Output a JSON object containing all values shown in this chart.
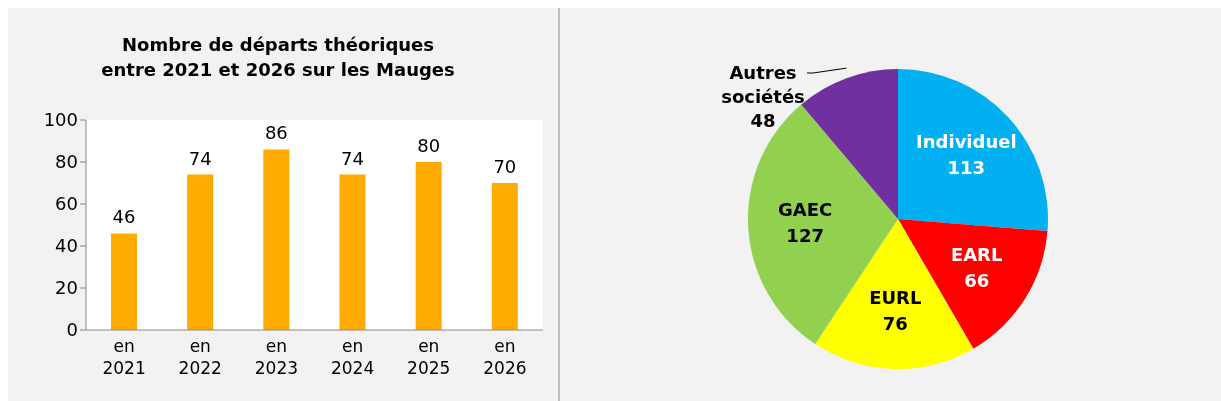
{
  "chart_data": [
    {
      "type": "bar",
      "title": "Nombre de départs théoriques entre 2021 et 2026 sur les Mauges",
      "categories": [
        "en 2021",
        "en 2022",
        "en 2023",
        "en 2024",
        "en 2025",
        "en 2026"
      ],
      "values": [
        46,
        74,
        86,
        74,
        80,
        70
      ],
      "color": "#ffab00",
      "ylim": [
        0,
        100
      ],
      "yticks": [
        0,
        20,
        40,
        60,
        80,
        100
      ],
      "data_labels": true
    },
    {
      "type": "pie",
      "categories": [
        "Individuel",
        "EARL",
        "EURL",
        "GAEC",
        "Autres sociétés"
      ],
      "values": [
        113,
        66,
        76,
        127,
        48
      ],
      "colors": [
        "#00b0f0",
        "#ff0000",
        "#ffff00",
        "#92d050",
        "#7030a0"
      ],
      "data_labels": true
    }
  ]
}
